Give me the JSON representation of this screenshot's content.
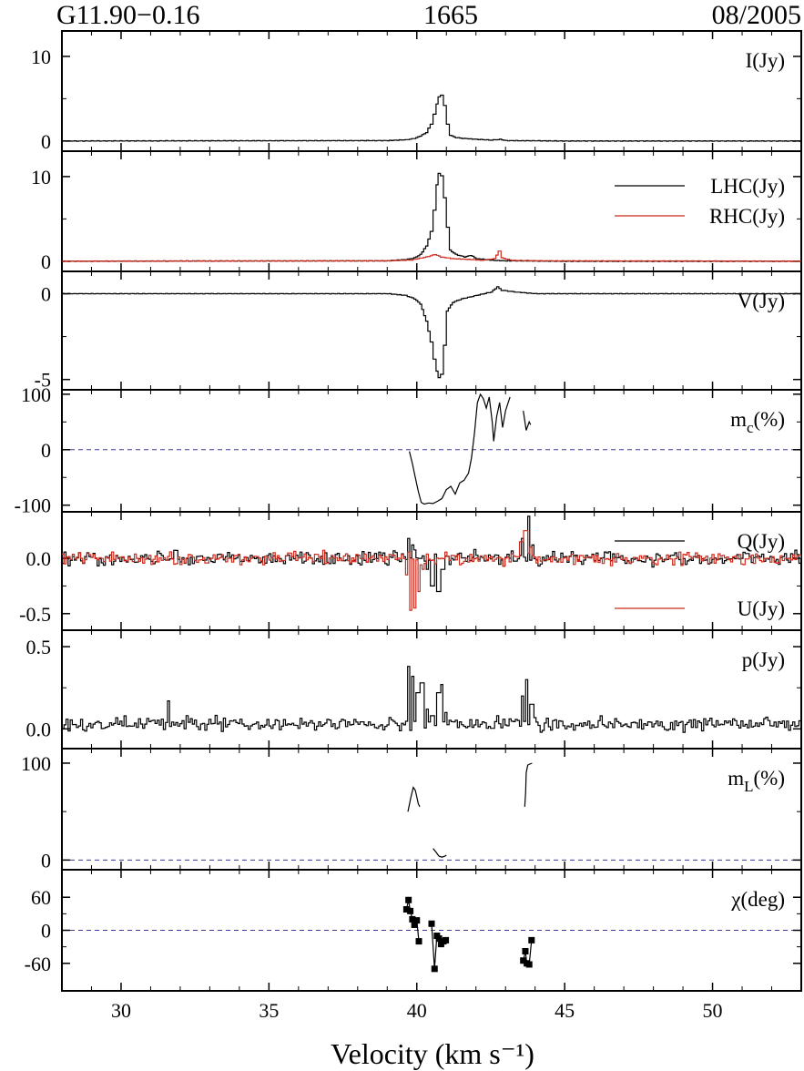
{
  "header": {
    "source": "G11.90−0.16",
    "frequency": "1665",
    "date": "08/2005"
  },
  "colors": {
    "series_primary": "#000000",
    "series_secondary": "#cc2a1c",
    "zero_line": "#3a3a9a"
  },
  "chart_data": {
    "type": "line",
    "layout": "stacked-panels-shared-x",
    "xlabel": "Velocity (km s⁻¹)",
    "x_range": [
      28,
      53
    ],
    "x_ticks": [
      30,
      35,
      40,
      45,
      50
    ],
    "x_tick_labels": [
      "30",
      "35",
      "40",
      "45",
      "50"
    ],
    "panels": [
      {
        "id": "I",
        "label": "I(Jy)",
        "ylim": [
          -1.2,
          13
        ],
        "y_ticks": [
          0,
          10
        ],
        "y_tick_labels": [
          "0",
          "10"
        ],
        "zero_line": false,
        "series": [
          {
            "name": "",
            "style": "step",
            "points": [
              [
                28.0,
                0.0
              ],
              [
                39.0,
                0.05
              ],
              [
                39.6,
                0.15
              ],
              [
                39.9,
                0.3
              ],
              [
                40.1,
                0.6
              ],
              [
                40.3,
                1.0
              ],
              [
                40.45,
                2.0
              ],
              [
                40.55,
                3.2
              ],
              [
                40.65,
                4.4
              ],
              [
                40.72,
                5.2
              ],
              [
                40.8,
                5.4
              ],
              [
                40.9,
                4.2
              ],
              [
                41.0,
                2.0
              ],
              [
                41.1,
                0.7
              ],
              [
                41.3,
                0.4
              ],
              [
                41.6,
                0.3
              ],
              [
                42.0,
                0.2
              ],
              [
                42.5,
                0.1
              ],
              [
                42.8,
                0.2
              ],
              [
                43.0,
                0.05
              ],
              [
                45.0,
                0.0
              ],
              [
                53.0,
                0.0
              ]
            ]
          }
        ]
      },
      {
        "id": "LHC-RHC",
        "label": "",
        "legend": [
          {
            "name": "LHC(Jy)",
            "series": 0
          },
          {
            "name": "RHC(Jy)",
            "series": 1
          }
        ],
        "ylim": [
          -1.2,
          13
        ],
        "y_ticks": [
          0,
          10
        ],
        "y_tick_labels": [
          "0",
          "10"
        ],
        "zero_line": false,
        "series": [
          {
            "name": "LHC(Jy)",
            "style": "step",
            "points": [
              [
                28.0,
                0.0
              ],
              [
                39.0,
                0.05
              ],
              [
                39.6,
                0.2
              ],
              [
                39.9,
                0.4
              ],
              [
                40.1,
                0.8
              ],
              [
                40.3,
                1.8
              ],
              [
                40.45,
                3.5
              ],
              [
                40.55,
                6.0
              ],
              [
                40.65,
                9.0
              ],
              [
                40.72,
                10.4
              ],
              [
                40.8,
                10.1
              ],
              [
                40.9,
                7.5
              ],
              [
                41.0,
                4.0
              ],
              [
                41.1,
                1.3
              ],
              [
                41.3,
                0.8
              ],
              [
                41.6,
                0.5
              ],
              [
                41.8,
                0.7
              ],
              [
                42.0,
                0.3
              ],
              [
                42.6,
                0.1
              ],
              [
                43.0,
                0.05
              ],
              [
                45.0,
                0.0
              ],
              [
                53.0,
                0.0
              ]
            ]
          },
          {
            "name": "RHC(Jy)",
            "style": "step",
            "points": [
              [
                28.0,
                0.0
              ],
              [
                39.0,
                0.05
              ],
              [
                39.8,
                0.15
              ],
              [
                40.3,
                0.5
              ],
              [
                40.6,
                0.8
              ],
              [
                40.8,
                0.5
              ],
              [
                41.2,
                0.3
              ],
              [
                41.8,
                0.2
              ],
              [
                42.2,
                0.1
              ],
              [
                42.6,
                0.3
              ],
              [
                42.75,
                1.2
              ],
              [
                42.85,
                0.4
              ],
              [
                43.2,
                0.1
              ],
              [
                44.0,
                0.05
              ],
              [
                53.0,
                0.0
              ]
            ]
          }
        ]
      },
      {
        "id": "V",
        "label": "V(Jy)",
        "ylim": [
          -5.6,
          1.3
        ],
        "y_ticks": [
          0,
          -5
        ],
        "y_tick_labels": [
          "0",
          "-5"
        ],
        "zero_line": false,
        "series": [
          {
            "name": "",
            "style": "step",
            "points": [
              [
                28.0,
                0.0
              ],
              [
                39.0,
                0.0
              ],
              [
                39.6,
                -0.1
              ],
              [
                39.9,
                -0.3
              ],
              [
                40.1,
                -0.6
              ],
              [
                40.3,
                -1.6
              ],
              [
                40.45,
                -2.8
              ],
              [
                40.55,
                -3.8
              ],
              [
                40.65,
                -4.5
              ],
              [
                40.72,
                -4.9
              ],
              [
                40.8,
                -4.7
              ],
              [
                40.9,
                -3.0
              ],
              [
                41.0,
                -1.0
              ],
              [
                41.2,
                -0.5
              ],
              [
                41.5,
                -0.3
              ],
              [
                42.0,
                -0.1
              ],
              [
                42.5,
                0.1
              ],
              [
                42.7,
                0.4
              ],
              [
                42.85,
                0.2
              ],
              [
                43.3,
                0.1
              ],
              [
                44.0,
                0.0
              ],
              [
                53.0,
                0.0
              ]
            ]
          }
        ]
      },
      {
        "id": "mc",
        "label": "m",
        "label_sub": "c",
        "label_suffix": "(%)",
        "ylim": [
          -112,
          108
        ],
        "y_ticks": [
          100,
          0,
          -100
        ],
        "y_tick_labels": [
          "100",
          "0",
          "-100"
        ],
        "zero_line": true,
        "series": [
          {
            "name": "",
            "style": "line",
            "points": [
              [
                39.75,
                -3
              ],
              [
                39.85,
                -25
              ],
              [
                39.95,
                -50
              ],
              [
                40.05,
                -75
              ],
              [
                40.15,
                -95
              ],
              [
                40.25,
                -98
              ],
              [
                40.4,
                -96
              ],
              [
                40.55,
                -97
              ],
              [
                40.7,
                -93
              ],
              [
                40.85,
                -88
              ],
              [
                41.0,
                -72
              ],
              [
                41.15,
                -66
              ],
              [
                41.3,
                -80
              ],
              [
                41.45,
                -60
              ],
              [
                41.6,
                -55
              ],
              [
                41.75,
                -42
              ],
              [
                41.85,
                -15
              ],
              [
                41.95,
                30
              ],
              [
                42.05,
                85
              ],
              [
                42.15,
                100
              ],
              [
                42.25,
                92
              ],
              [
                42.35,
                75
              ],
              [
                42.45,
                95
              ],
              [
                42.55,
                50
              ],
              [
                42.6,
                15
              ],
              [
                42.7,
                60
              ],
              [
                42.8,
                85
              ],
              [
                42.9,
                40
              ],
              [
                43.0,
                70
              ],
              [
                43.15,
                95
              ]
            ]
          },
          {
            "name": "",
            "style": "line",
            "points": [
              [
                43.6,
                70
              ],
              [
                43.7,
                35
              ],
              [
                43.8,
                50
              ],
              [
                43.85,
                45
              ]
            ]
          }
        ]
      },
      {
        "id": "QU",
        "label": "",
        "legend": [
          {
            "name": "Q(Jy)",
            "series": 0
          },
          {
            "name": "U(Jy)",
            "series": 1
          }
        ],
        "ylim": [
          -0.65,
          0.42
        ],
        "y_ticks": [
          0.0,
          -0.5
        ],
        "y_tick_labels": [
          "0.0",
          "-0.5"
        ],
        "zero_line": false,
        "series": [
          {
            "name": "Q(Jy)",
            "style": "step-noise",
            "baseline": 0.0,
            "noise": 0.06,
            "features": [
              [
                39.7,
                0.18
              ],
              [
                39.85,
                0.12
              ],
              [
                40.3,
                -0.1
              ],
              [
                40.5,
                -0.25
              ],
              [
                40.7,
                -0.3
              ],
              [
                40.85,
                -0.1
              ],
              [
                43.55,
                0.18
              ],
              [
                43.75,
                0.38
              ],
              [
                43.9,
                0.12
              ]
            ]
          },
          {
            "name": "U(Jy)",
            "style": "step-noise",
            "baseline": 0.0,
            "noise": 0.05,
            "features": [
              [
                39.6,
                -0.15
              ],
              [
                39.75,
                -0.47
              ],
              [
                39.9,
                -0.45
              ],
              [
                40.05,
                -0.3
              ],
              [
                40.2,
                -0.1
              ],
              [
                43.5,
                0.15
              ],
              [
                43.65,
                0.25
              ],
              [
                43.8,
                0.1
              ]
            ]
          }
        ]
      },
      {
        "id": "p",
        "label": "p(Jy)",
        "ylim": [
          -0.12,
          0.6
        ],
        "y_ticks": [
          0.5,
          0.0
        ],
        "y_tick_labels": [
          "0.5",
          "0.0"
        ],
        "zero_line": false,
        "series": [
          {
            "name": "",
            "style": "step-noise",
            "baseline": 0.03,
            "noise": 0.04,
            "features": [
              [
                31.55,
                0.17
              ],
              [
                39.7,
                0.38
              ],
              [
                39.85,
                0.32
              ],
              [
                40.0,
                0.22
              ],
              [
                40.15,
                0.28
              ],
              [
                40.3,
                0.12
              ],
              [
                40.5,
                0.08
              ],
              [
                40.7,
                0.22
              ],
              [
                40.8,
                0.27
              ],
              [
                40.95,
                0.1
              ],
              [
                43.55,
                0.2
              ],
              [
                43.7,
                0.3
              ],
              [
                43.85,
                0.15
              ]
            ]
          }
        ]
      },
      {
        "id": "mL",
        "label": "m",
        "label_sub": "L",
        "label_suffix": "(%)",
        "ylim": [
          -10,
          115
        ],
        "y_ticks": [
          100,
          0
        ],
        "y_tick_labels": [
          "100",
          "0"
        ],
        "zero_line": true,
        "series": [
          {
            "name": "",
            "style": "line",
            "points": [
              [
                39.7,
                50
              ],
              [
                39.8,
                65
              ],
              [
                39.88,
                75
              ],
              [
                39.95,
                72
              ],
              [
                40.0,
                65
              ],
              [
                40.05,
                58
              ],
              [
                40.1,
                55
              ]
            ]
          },
          {
            "name": "",
            "style": "line",
            "points": [
              [
                40.55,
                12
              ],
              [
                40.65,
                8
              ],
              [
                40.75,
                4
              ],
              [
                40.85,
                3
              ],
              [
                40.95,
                4
              ],
              [
                41.0,
                5
              ]
            ]
          },
          {
            "name": "",
            "style": "line",
            "points": [
              [
                43.65,
                55
              ],
              [
                43.68,
                70
              ],
              [
                43.7,
                90
              ],
              [
                43.75,
                98
              ],
              [
                43.82,
                99
              ],
              [
                43.9,
                100
              ]
            ]
          }
        ]
      },
      {
        "id": "chi",
        "label": "χ(deg)",
        "ylim": [
          -110,
          110
        ],
        "y_ticks": [
          60,
          0,
          -60
        ],
        "y_tick_labels": [
          "60",
          "0",
          "-60"
        ],
        "zero_line": true,
        "series": [
          {
            "name": "",
            "style": "line-markers",
            "points": [
              [
                39.65,
                38
              ],
              [
                39.72,
                55
              ],
              [
                39.78,
                35
              ],
              [
                39.85,
                20
              ],
              [
                39.92,
                10
              ],
              [
                40.0,
                18
              ],
              [
                40.07,
                -20
              ]
            ]
          },
          {
            "name": "",
            "style": "line-markers",
            "points": [
              [
                40.5,
                12
              ],
              [
                40.6,
                -70
              ],
              [
                40.68,
                -10
              ],
              [
                40.75,
                -15
              ],
              [
                40.82,
                -25
              ],
              [
                40.9,
                -20
              ],
              [
                40.98,
                -18
              ]
            ]
          },
          {
            "name": "",
            "style": "line-markers",
            "points": [
              [
                43.6,
                -55
              ],
              [
                43.67,
                -38
              ],
              [
                43.72,
                -60
              ],
              [
                43.8,
                -62
              ],
              [
                43.88,
                -18
              ]
            ]
          }
        ]
      }
    ]
  }
}
